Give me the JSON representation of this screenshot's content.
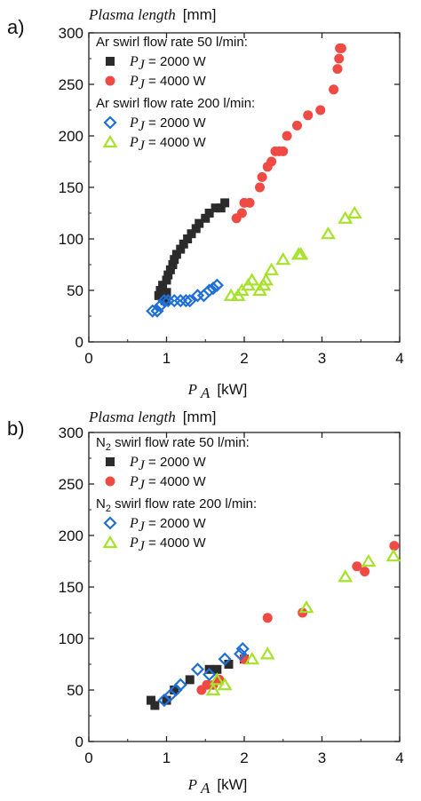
{
  "colors": {
    "black": "#2b2b2b",
    "red": "#ef4a43",
    "blue": "#1f6fd6",
    "green": "#a6e22a"
  },
  "chart_data": [
    {
      "panel_label": "a)",
      "type": "scatter",
      "ylabel_italic": "Plasma length",
      "ylabel_unit": "[mm]",
      "xlabel_italic": "P",
      "xlabel_sub": "A",
      "xlabel_unit": "[kW]",
      "xlim": [
        0,
        4
      ],
      "ylim": [
        0,
        300
      ],
      "xticks": [
        "0",
        "1",
        "2",
        "3",
        "4"
      ],
      "yticks": [
        "0",
        "50",
        "100",
        "150",
        "200",
        "250",
        "300"
      ],
      "legend_groups": [
        {
          "title": "Ar swirl flow rate 50 l/min:",
          "entries": [
            {
              "italic": "P",
              "sub": "J",
              "text": " = 2000 W",
              "series": 0
            },
            {
              "italic": "P",
              "sub": "J",
              "text": " = 4000 W",
              "series": 1
            }
          ]
        },
        {
          "title": "Ar swirl flow rate 200 l/min:",
          "entries": [
            {
              "italic": "P",
              "sub": "J",
              "text": " = 2000 W",
              "series": 2
            },
            {
              "italic": "P",
              "sub": "J",
              "text": " = 4000 W",
              "series": 3
            }
          ]
        }
      ],
      "series": [
        {
          "marker": "square",
          "color": "black",
          "x": [
            0.9,
            0.92,
            0.95,
            0.98,
            1.0,
            1.0,
            1.02,
            1.05,
            1.08,
            1.1,
            1.13,
            1.18,
            1.22,
            1.27,
            1.32,
            1.38,
            1.42,
            1.5,
            1.55,
            1.63,
            1.7,
            1.75
          ],
          "y": [
            45,
            50,
            55,
            40,
            48,
            60,
            65,
            70,
            75,
            80,
            85,
            90,
            95,
            100,
            105,
            110,
            115,
            120,
            125,
            130,
            130,
            135
          ]
        },
        {
          "marker": "circle",
          "color": "red",
          "x": [
            1.9,
            1.97,
            2.0,
            2.07,
            2.2,
            2.23,
            2.3,
            2.35,
            2.4,
            2.45,
            2.5,
            2.55,
            2.68,
            2.82,
            2.98,
            3.15,
            3.2,
            3.22,
            3.23,
            3.25
          ],
          "y": [
            120,
            125,
            135,
            135,
            150,
            160,
            170,
            175,
            185,
            185,
            185,
            200,
            210,
            220,
            225,
            245,
            265,
            275,
            285,
            285
          ]
        },
        {
          "marker": "diamond",
          "color": "blue",
          "x": [
            0.82,
            0.88,
            0.92,
            0.97,
            1.02,
            1.1,
            1.18,
            1.25,
            1.3,
            1.4,
            1.48,
            1.55,
            1.6,
            1.65
          ],
          "y": [
            30,
            30,
            35,
            40,
            40,
            40,
            40,
            40,
            40,
            45,
            45,
            50,
            52,
            55
          ]
        },
        {
          "marker": "triangle",
          "color": "green",
          "x": [
            1.83,
            1.92,
            1.97,
            2.05,
            2.1,
            2.2,
            2.25,
            2.28,
            2.35,
            2.5,
            2.7,
            2.73,
            3.08,
            3.3,
            3.42
          ],
          "y": [
            45,
            45,
            50,
            55,
            60,
            50,
            55,
            60,
            70,
            80,
            85,
            85,
            105,
            120,
            125
          ]
        }
      ]
    },
    {
      "panel_label": "b)",
      "type": "scatter",
      "ylabel_italic": "Plasma length",
      "ylabel_unit": "[mm]",
      "xlabel_italic": "P",
      "xlabel_sub": "A",
      "xlabel_unit": "[kW]",
      "xlim": [
        0,
        4
      ],
      "ylim": [
        0,
        300
      ],
      "xticks": [
        "0",
        "1",
        "2",
        "3",
        "4"
      ],
      "yticks": [
        "0",
        "50",
        "100",
        "150",
        "200",
        "250",
        "300"
      ],
      "legend_groups": [
        {
          "title_pre": "N",
          "title_sub": "2",
          "title_post": " swirl flow rate 50 l/min:",
          "entries": [
            {
              "italic": "P",
              "sub": "J",
              "text": " = 2000 W",
              "series": 0
            },
            {
              "italic": "P",
              "sub": "J",
              "text": " = 4000 W",
              "series": 1
            }
          ]
        },
        {
          "title_pre": "N",
          "title_sub": "2",
          "title_post": " swirl flow rate 200 l/min:",
          "entries": [
            {
              "italic": "P",
              "sub": "J",
              "text": " = 2000 W",
              "series": 2
            },
            {
              "italic": "P",
              "sub": "J",
              "text": " = 4000 W",
              "series": 3
            }
          ]
        }
      ],
      "series": [
        {
          "marker": "square",
          "color": "black",
          "x": [
            0.8,
            0.85,
            1.0,
            1.1,
            1.3,
            1.55,
            1.65,
            1.8,
            2.0
          ],
          "y": [
            40,
            35,
            40,
            50,
            60,
            70,
            70,
            75,
            80
          ]
        },
        {
          "marker": "circle",
          "color": "red",
          "x": [
            1.45,
            1.52,
            1.6,
            1.68,
            2.0,
            2.3,
            2.75,
            3.45,
            3.55,
            3.93
          ],
          "y": [
            50,
            55,
            55,
            60,
            80,
            120,
            125,
            170,
            165,
            190
          ]
        },
        {
          "marker": "diamond",
          "color": "blue",
          "x": [
            0.97,
            1.05,
            1.12,
            1.18,
            1.4,
            1.55,
            1.75,
            1.95,
            1.98
          ],
          "y": [
            40,
            45,
            50,
            55,
            70,
            65,
            80,
            85,
            90
          ]
        },
        {
          "marker": "triangle",
          "color": "green",
          "x": [
            1.6,
            1.65,
            1.75,
            2.1,
            2.3,
            2.8,
            3.3,
            3.6,
            3.92
          ],
          "y": [
            50,
            60,
            55,
            80,
            85,
            130,
            160,
            175,
            180
          ]
        }
      ]
    }
  ]
}
